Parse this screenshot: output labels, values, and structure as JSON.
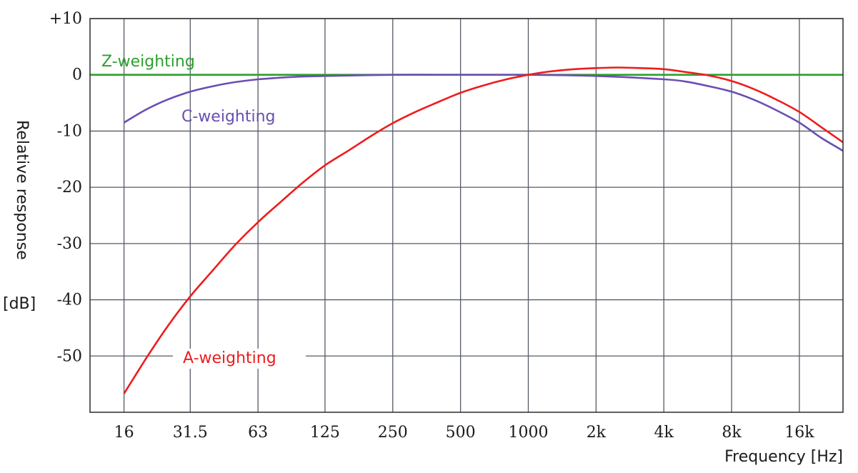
{
  "chart_data": {
    "type": "line",
    "xlabel": "Frequency [Hz]",
    "ylabel_line1": "Relative response",
    "ylabel_line2": "[dB]",
    "x_scale": "log",
    "x_categories": [
      "16",
      "31.5",
      "63",
      "125",
      "250",
      "500",
      "1000",
      "2k",
      "4k",
      "8k",
      "16k"
    ],
    "x_tick_values": [
      16,
      31.5,
      63,
      125,
      250,
      500,
      1000,
      2000,
      4000,
      8000,
      16000
    ],
    "xlim": [
      11.3,
      25000
    ],
    "y_tick_labels": [
      "+10",
      "0",
      "-10",
      "-20",
      "-30",
      "-40",
      "-50"
    ],
    "y_tick_values": [
      10,
      0,
      -10,
      -20,
      -30,
      -40,
      -50
    ],
    "ylim": [
      -60,
      10
    ],
    "grid": true,
    "series": [
      {
        "name": "Z-weighting",
        "color": "#2ca02c",
        "label": "Z-weighting",
        "x": [
          11.3,
          25000
        ],
        "y": [
          0,
          0
        ]
      },
      {
        "name": "C-weighting",
        "color": "#6a4fb0",
        "label": "C-weighting",
        "x": [
          16,
          20,
          25,
          31.5,
          40,
          50,
          63,
          80,
          100,
          125,
          250,
          500,
          1000,
          2000,
          4000,
          5000,
          6300,
          8000,
          10000,
          12500,
          16000,
          20000,
          25000
        ],
        "y": [
          -8.5,
          -6.2,
          -4.4,
          -3.0,
          -2.0,
          -1.3,
          -0.8,
          -0.5,
          -0.3,
          -0.2,
          0.0,
          0.0,
          0.0,
          -0.2,
          -0.8,
          -1.2,
          -2.0,
          -3.0,
          -4.4,
          -6.2,
          -8.5,
          -11.2,
          -13.5
        ]
      },
      {
        "name": "A-weighting",
        "color": "#ee1c1c",
        "label": "A-weighting",
        "x": [
          16,
          20,
          25,
          31.5,
          40,
          50,
          63,
          80,
          100,
          125,
          160,
          200,
          250,
          315,
          400,
          500,
          630,
          800,
          1000,
          1250,
          1600,
          2000,
          2500,
          3150,
          4000,
          5000,
          6300,
          8000,
          10000,
          12500,
          16000,
          20000,
          25000
        ],
        "y": [
          -56.7,
          -50.5,
          -44.7,
          -39.4,
          -34.6,
          -30.2,
          -26.2,
          -22.5,
          -19.1,
          -16.1,
          -13.4,
          -10.9,
          -8.6,
          -6.6,
          -4.8,
          -3.2,
          -1.9,
          -0.8,
          0.0,
          0.6,
          1.0,
          1.2,
          1.3,
          1.2,
          1.0,
          0.5,
          -0.1,
          -1.1,
          -2.5,
          -4.3,
          -6.6,
          -9.3,
          -12.0
        ]
      }
    ]
  }
}
